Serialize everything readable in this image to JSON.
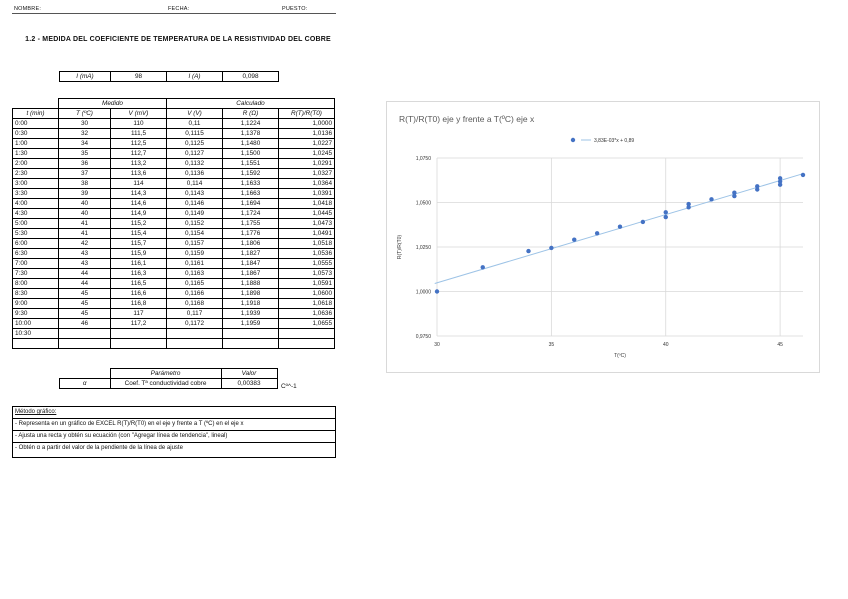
{
  "header": {
    "nombre_label": "NOMBRE:",
    "fecha_label": "FECHA:",
    "puesto_label": "PUESTO:"
  },
  "title": "1.2 - MEDIDA DEL COEFICIENTE DE TEMPERATURA DE LA RESISTIVIDAD DEL COBRE",
  "current": {
    "i_ma_label": "I (mA)",
    "i_ma_value": "98",
    "i_a_label": "I (A)",
    "i_a_value": "0,098"
  },
  "table": {
    "group_medido": "Medido",
    "group_calculado": "Calculado",
    "columns": [
      "t (min)",
      "T (ºC)",
      "V (mV)",
      "V (V)",
      "R (Ω)",
      "R(T)/R(T0)"
    ],
    "rows": [
      [
        "0:00",
        "30",
        "110",
        "0,11",
        "1,1224",
        "1,0000"
      ],
      [
        "0:30",
        "32",
        "111,5",
        "0,1115",
        "1,1378",
        "1,0136"
      ],
      [
        "1:00",
        "34",
        "112,5",
        "0,1125",
        "1,1480",
        "1,0227"
      ],
      [
        "1:30",
        "35",
        "112,7",
        "0,1127",
        "1,1500",
        "1,0245"
      ],
      [
        "2:00",
        "36",
        "113,2",
        "0,1132",
        "1,1551",
        "1,0291"
      ],
      [
        "2:30",
        "37",
        "113,6",
        "0,1136",
        "1,1592",
        "1,0327"
      ],
      [
        "3:00",
        "38",
        "114",
        "0,114",
        "1,1633",
        "1,0364"
      ],
      [
        "3:30",
        "39",
        "114,3",
        "0,1143",
        "1,1663",
        "1,0391"
      ],
      [
        "4:00",
        "40",
        "114,6",
        "0,1146",
        "1,1694",
        "1,0418"
      ],
      [
        "4:30",
        "40",
        "114,9",
        "0,1149",
        "1,1724",
        "1,0445"
      ],
      [
        "5:00",
        "41",
        "115,2",
        "0,1152",
        "1,1755",
        "1,0473"
      ],
      [
        "5:30",
        "41",
        "115,4",
        "0,1154",
        "1,1776",
        "1,0491"
      ],
      [
        "6:00",
        "42",
        "115,7",
        "0,1157",
        "1,1806",
        "1,0518"
      ],
      [
        "6:30",
        "43",
        "115,9",
        "0,1159",
        "1,1827",
        "1,0536"
      ],
      [
        "7:00",
        "43",
        "116,1",
        "0,1161",
        "1,1847",
        "1,0555"
      ],
      [
        "7:30",
        "44",
        "116,3",
        "0,1163",
        "1,1867",
        "1,0573"
      ],
      [
        "8:00",
        "44",
        "116,5",
        "0,1165",
        "1,1888",
        "1,0591"
      ],
      [
        "8:30",
        "45",
        "116,6",
        "0,1166",
        "1,1898",
        "1,0600"
      ],
      [
        "9:00",
        "45",
        "116,8",
        "0,1168",
        "1,1918",
        "1,0618"
      ],
      [
        "9:30",
        "45",
        "117",
        "0,117",
        "1,1939",
        "1,0636"
      ],
      [
        "10:00",
        "46",
        "117,2",
        "0,1172",
        "1,1959",
        "1,0655"
      ],
      [
        "10:30",
        "",
        "",
        "",
        "",
        ""
      ],
      [
        "",
        "",
        "",
        "",
        "",
        ""
      ]
    ]
  },
  "parameter": {
    "header_param": "Parámetro",
    "header_value": "Valor",
    "symbol": "α",
    "name": "Coef. Tª conductividad cobre",
    "value": "0,00383",
    "unit": "Cº^-1"
  },
  "method": {
    "title": "Método gráfico:",
    "steps": [
      "- Representa en un gráfico de EXCEL R(T)/R(T0) en el eje y frente a T (ºC) en el eje x",
      "- Ajusta una recta y obtén su ecuación (con \"Agregar línea de tendencia\", lineal)",
      "- Obtén α a partir del valor de la pendiente de la línea de ajuste"
    ]
  },
  "chart_data": {
    "type": "scatter",
    "title": "R(T)/R(T0) eje y frente a T(ºC) eje x",
    "xlabel": "T(ºC)",
    "ylabel": "R(T)/R(T0)",
    "legend": "3,83E-03*x + 0,89",
    "legend_position": "top",
    "xlim": [
      30,
      46
    ],
    "ylim": [
      0.975,
      1.075
    ],
    "xticks": [
      30,
      35,
      40,
      45
    ],
    "xtick_labels": [
      "30",
      "35",
      "40",
      "45"
    ],
    "yticks": [
      0.975,
      1.0,
      1.025,
      1.05,
      1.075
    ],
    "ytick_labels": [
      "0,9750",
      "1,0000",
      "1,0250",
      "1,0500",
      "1,0750"
    ],
    "grid": true,
    "marker_color": "#4472c4",
    "trend_color": "#9dc3e6",
    "trendline": {
      "slope": 0.00383,
      "intercept": 0.89
    },
    "series": [
      {
        "x": [
          30,
          32,
          34,
          35,
          36,
          37,
          38,
          39,
          40,
          40,
          41,
          41,
          42,
          43,
          43,
          44,
          44,
          45,
          45,
          45,
          46
        ],
        "y": [
          1.0,
          1.0136,
          1.0227,
          1.0245,
          1.0291,
          1.0327,
          1.0364,
          1.0391,
          1.0418,
          1.0445,
          1.0473,
          1.0491,
          1.0518,
          1.0536,
          1.0555,
          1.0573,
          1.0591,
          1.06,
          1.0618,
          1.0636,
          1.0655
        ]
      }
    ]
  }
}
